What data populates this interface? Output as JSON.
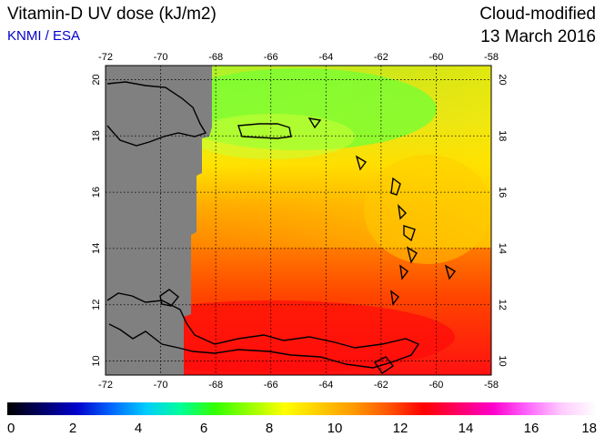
{
  "header": {
    "title": "Vitamin-D UV dose (kJ/m2)",
    "source": "KNMI / ESA",
    "product": "Cloud-modified",
    "date": "13 March 2016"
  },
  "map": {
    "lon_range": [
      -72,
      -58
    ],
    "lat_range": [
      9.5,
      20.5
    ],
    "lon_ticks": [
      "-72",
      "-70",
      "-68",
      "-66",
      "-64",
      "-62",
      "-60",
      "-58"
    ],
    "lat_ticks": [
      "20",
      "18",
      "16",
      "14",
      "12",
      "10"
    ],
    "no_data_color": "#808080",
    "grid": "dotted"
  },
  "colorbar": {
    "range": [
      0,
      18
    ],
    "labels": [
      "0",
      "2",
      "4",
      "6",
      "8",
      "10",
      "12",
      "14",
      "16",
      "18"
    ],
    "stops": [
      "#000000",
      "#000066",
      "#0000cc",
      "#0066ff",
      "#00ccff",
      "#00ff99",
      "#33ff00",
      "#99ff00",
      "#ffff00",
      "#ffcc00",
      "#ff9900",
      "#ff5500",
      "#ff0000",
      "#ff0066",
      "#ff00cc",
      "#ff66ff",
      "#ffccff",
      "#ffffff"
    ]
  }
}
